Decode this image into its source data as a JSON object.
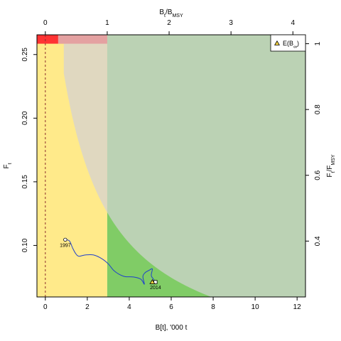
{
  "chart_data": {
    "type": "line",
    "title": "",
    "xlabel": "B[t], '000 t",
    "ylabel": "F",
    "ylabel_sub": "t",
    "top_axis": {
      "label": "B",
      "label_sub": "t",
      "label_rest": "/B",
      "label_rest_sub": "MSY",
      "ticks": [
        "0",
        "1",
        "2",
        "3",
        "4"
      ]
    },
    "right_axis": {
      "label": "F",
      "label_sub": "t",
      "label_rest": "/F",
      "label_rest_sub": "MSY",
      "ticks": [
        "0.4",
        "0.6",
        "0.8",
        "1"
      ]
    },
    "xlim": [
      -0.4,
      12.4
    ],
    "ylim": [
      0.0595,
      0.2655
    ],
    "x_ticks": [
      "0",
      "2",
      "4",
      "6",
      "8",
      "10",
      "12"
    ],
    "y_ticks": [
      "0.10",
      "0.15",
      "0.20",
      "0.25"
    ],
    "bmsy": 2.95,
    "fmsy": 0.2585,
    "zones": {
      "red": "#FF3333",
      "yellow": "#FFEA8A",
      "green": "#80CC66",
      "pink": "#E4A1A1",
      "confidence": "#E0D8C0",
      "confidence_on_green": "#BBD2B4"
    },
    "trajectory": {
      "color": "#1F3FCC",
      "x": [
        0.95,
        1.15,
        1.3,
        1.45,
        1.6,
        1.9,
        2.3,
        2.7,
        3.0,
        3.25,
        3.5,
        3.8,
        4.2,
        4.55,
        4.72,
        4.65,
        4.75,
        4.95,
        5.1,
        5.05,
        5.15,
        5.25
      ],
      "y": [
        0.1045,
        0.1035,
        0.098,
        0.0935,
        0.0915,
        0.0925,
        0.0925,
        0.0895,
        0.0855,
        0.0805,
        0.0775,
        0.0755,
        0.0752,
        0.0735,
        0.0695,
        0.0755,
        0.0785,
        0.0805,
        0.0815,
        0.0765,
        0.0735,
        0.0712
      ],
      "start_label": "1997",
      "end_label": "2014"
    },
    "expected_point": {
      "x": 5.1,
      "y": 0.0712
    },
    "legend": {
      "label": "E(B",
      "label_sub": "∞",
      "label_close": ")",
      "position": "top-right"
    },
    "bmsy_line": {
      "x": 0,
      "style": "dashed",
      "color": "#8B2E2E"
    }
  }
}
